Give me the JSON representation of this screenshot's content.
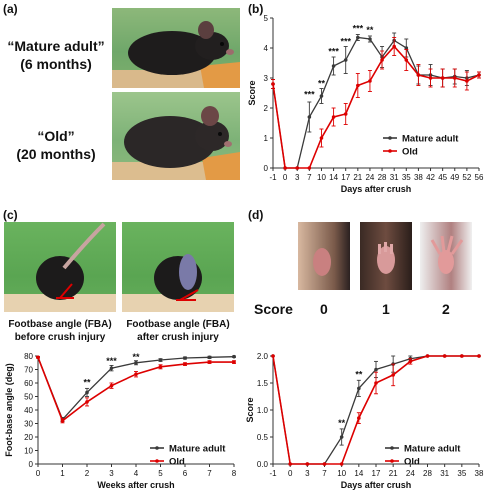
{
  "panels": {
    "a": {
      "letter": "(a)",
      "label_mature_line1": "“Mature adult”",
      "label_mature_line2": "(6 months)",
      "label_old_line1": "“Old”",
      "label_old_line2": "(20 months)"
    },
    "b": {
      "letter": "(b)"
    },
    "c": {
      "letter": "(c)",
      "caption_before_line1": "Footbase angle (FBA)",
      "caption_before_line2": "before crush injury",
      "caption_after_line1": "Footbase angle (FBA)",
      "caption_after_line2": "after crush injury"
    },
    "d": {
      "letter": "(d)",
      "score_label": "Score",
      "score_values": [
        "0",
        "1",
        "2"
      ]
    }
  },
  "colors": {
    "mature": "#3a3a3a",
    "old": "#dd0000",
    "axis": "#333333",
    "photo_green": "#4fa14f",
    "photo_orange": "#e08a3a"
  },
  "chart_data": [
    {
      "id": "b",
      "type": "line",
      "xlabel": "Days after crush",
      "ylabel": "Score",
      "x_ticks": [
        "-1",
        "0",
        "3",
        "7",
        "10",
        "14",
        "17",
        "21",
        "24",
        "28",
        "31",
        "35",
        "38",
        "42",
        "45",
        "49",
        "52",
        "56"
      ],
      "ylim": [
        0,
        5
      ],
      "y_ticks": [
        0,
        1,
        2,
        3,
        4,
        5
      ],
      "legend_position": "right",
      "series": [
        {
          "name": "Mature adult",
          "color": "#3a3a3a",
          "values": [
            2.8,
            0,
            0,
            1.7,
            2.4,
            3.4,
            3.6,
            4.35,
            4.3,
            3.7,
            4.25,
            4.0,
            3.1,
            3.1,
            3.0,
            3.05,
            3.0,
            3.1
          ],
          "errors": [
            0.15,
            0,
            0,
            0.5,
            0.25,
            0.3,
            0.45,
            0.1,
            0.1,
            0.35,
            0.25,
            0.3,
            0.3,
            0.35,
            0.3,
            0.25,
            0.25,
            0.1
          ]
        },
        {
          "name": "Old",
          "color": "#dd0000",
          "values": [
            2.8,
            0,
            0,
            0,
            1.0,
            1.7,
            1.8,
            2.75,
            2.9,
            3.6,
            4.05,
            3.6,
            3.1,
            3.0,
            3.0,
            3.0,
            2.9,
            3.1
          ],
          "errors": [
            0.15,
            0,
            0,
            0,
            0.3,
            0.3,
            0.35,
            0.4,
            0.35,
            0.3,
            0.3,
            0.35,
            0.35,
            0.3,
            0.3,
            0.3,
            0.3,
            0.1
          ]
        }
      ],
      "annotations": [
        {
          "x": "7",
          "y": 2.35,
          "text": "***"
        },
        {
          "x": "10",
          "y": 2.72,
          "text": "**"
        },
        {
          "x": "14",
          "y": 3.78,
          "text": "***"
        },
        {
          "x": "17",
          "y": 4.12,
          "text": "***"
        },
        {
          "x": "21",
          "y": 4.55,
          "text": "***"
        },
        {
          "x": "24",
          "y": 4.5,
          "text": "**"
        }
      ]
    },
    {
      "id": "fba",
      "type": "line",
      "xlabel": "Weeks after crush",
      "ylabel": "Foot-base angle (deg)",
      "x_ticks": [
        "0",
        "1",
        "2",
        "3",
        "4",
        "5",
        "6",
        "7",
        "8"
      ],
      "ylim": [
        0,
        80
      ],
      "y_ticks": [
        0,
        10,
        20,
        30,
        40,
        50,
        60,
        70,
        80
      ],
      "legend_position": "bottom-right",
      "series": [
        {
          "name": "Mature adult",
          "color": "#3a3a3a",
          "values": [
            79,
            33,
            53,
            71,
            75,
            77,
            78.5,
            79,
            79.5
          ],
          "errors": [
            0.5,
            1.5,
            3,
            2,
            1.5,
            1,
            0.8,
            0.8,
            0.5
          ]
        },
        {
          "name": "Old",
          "color": "#dd0000",
          "values": [
            79,
            32,
            46,
            58,
            66.5,
            72,
            74,
            75.5,
            75.5
          ],
          "errors": [
            0.5,
            1.5,
            3,
            2,
            2,
            1.5,
            1,
            1,
            1
          ]
        }
      ],
      "annotations": [
        {
          "x": "2",
          "y": 58,
          "text": "**"
        },
        {
          "x": "3",
          "y": 74,
          "text": "***"
        },
        {
          "x": "4",
          "y": 77,
          "text": "**"
        }
      ]
    },
    {
      "id": "d",
      "type": "line",
      "xlabel": "Days after crush",
      "ylabel": "Score",
      "x_ticks": [
        "-1",
        "0",
        "3",
        "7",
        "10",
        "14",
        "17",
        "21",
        "24",
        "28",
        "31",
        "35",
        "38"
      ],
      "ylim": [
        0,
        2
      ],
      "y_ticks": [
        "0.0",
        "0.5",
        "1.0",
        "1.5",
        "2.0"
      ],
      "legend_position": "bottom-right",
      "series": [
        {
          "name": "Mature adult",
          "color": "#3a3a3a",
          "values": [
            2,
            0,
            0,
            0,
            0.5,
            1.4,
            1.75,
            1.85,
            1.95,
            2,
            2,
            2,
            2
          ],
          "errors": [
            0,
            0,
            0,
            0,
            0.15,
            0.15,
            0.15,
            0.15,
            0.05,
            0,
            0,
            0,
            0
          ]
        },
        {
          "name": "Old",
          "color": "#dd0000",
          "values": [
            2,
            0,
            0,
            0,
            0,
            0.85,
            1.5,
            1.65,
            1.9,
            2,
            2,
            2,
            2
          ],
          "errors": [
            0,
            0,
            0,
            0,
            0,
            0.1,
            0.2,
            0.2,
            0.05,
            0,
            0,
            0,
            0
          ]
        }
      ],
      "annotations": [
        {
          "x": "10",
          "y": 0.7,
          "text": "**"
        },
        {
          "x": "14",
          "y": 1.6,
          "text": "**"
        }
      ]
    }
  ]
}
